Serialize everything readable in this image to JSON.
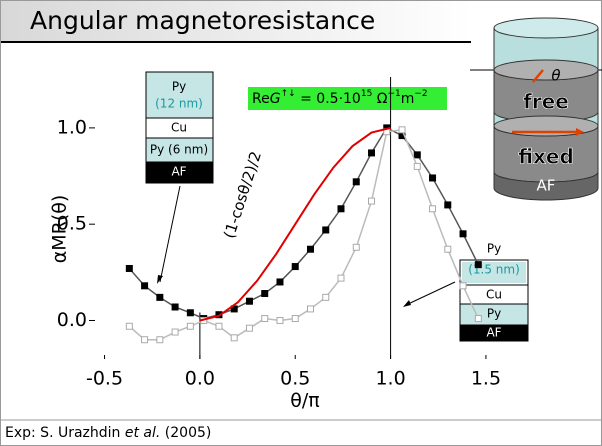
{
  "slide": {
    "title": "Angular magnetoresistance",
    "footer": {
      "prefix": "Exp: S. Urazhdin ",
      "italic": "et al.",
      "suffix": " (2005)"
    },
    "formula": [
      "Re",
      "G",
      "↑↓",
      " = 0.5·10",
      "15",
      " Ω",
      "−1",
      "m",
      "−2"
    ],
    "curve_label": "(1-cosθ/2)/2",
    "left_stack": [
      "Py",
      "(12 nm)",
      "Cu",
      "Py (6 nm)",
      "AF"
    ],
    "right_stack": [
      "Py",
      "(1.5 nm)",
      "Cu",
      "Py",
      "AF"
    ],
    "cylinder": [
      "θ",
      "free",
      "fixed",
      "AF"
    ]
  },
  "chart_data": {
    "type": "scatter",
    "xlabel": "θ/π",
    "ylabel": "αMR(θ)",
    "xlim": [
      -0.55,
      1.6
    ],
    "ylim": [
      -0.2,
      1.15
    ],
    "xticks": [
      {
        "value": -0.5,
        "label": "-0.5"
      },
      {
        "value": 0,
        "label": "0.0"
      },
      {
        "value": 0.5,
        "label": "0.5"
      },
      {
        "value": 1,
        "label": "1.0"
      },
      {
        "value": 1.5,
        "label": "1.5"
      }
    ],
    "yticks": [
      {
        "value": 0,
        "label": "0.0"
      },
      {
        "value": 0.5,
        "label": "0.5"
      },
      {
        "value": 1,
        "label": "1.0"
      }
    ],
    "series": [
      {
        "marker": "filled",
        "color": "#000000",
        "line_color": "#555555",
        "x": [
          -0.37,
          -0.29,
          -0.21,
          -0.13,
          -0.05,
          0.02,
          0.1,
          0.18,
          0.26,
          0.34,
          0.42,
          0.5,
          0.58,
          0.66,
          0.74,
          0.82,
          0.9,
          0.98,
          1.06,
          1.14,
          1.22,
          1.3,
          1.38,
          1.46
        ],
        "values": [
          0.27,
          0.18,
          0.12,
          0.07,
          0.04,
          0.01,
          0.03,
          0.06,
          0.1,
          0.14,
          0.2,
          0.28,
          0.37,
          0.47,
          0.58,
          0.72,
          0.87,
          1.0,
          0.96,
          0.86,
          0.74,
          0.6,
          0.45,
          0.29
        ]
      },
      {
        "marker": "open",
        "color": "#aaaaaa",
        "line_color": "#bbbbbb",
        "x": [
          -0.37,
          -0.29,
          -0.21,
          -0.13,
          -0.05,
          0.02,
          0.1,
          0.18,
          0.26,
          0.34,
          0.42,
          0.5,
          0.58,
          0.66,
          0.74,
          0.82,
          0.9,
          0.98,
          1.06,
          1.14,
          1.22,
          1.3,
          1.38,
          1.46
        ],
        "values": [
          -0.03,
          -0.1,
          -0.1,
          -0.06,
          -0.03,
          0.0,
          -0.03,
          -0.09,
          -0.04,
          0.01,
          0.0,
          0.01,
          0.06,
          0.12,
          0.22,
          0.38,
          0.62,
          0.98,
          0.99,
          0.8,
          0.58,
          0.37,
          0.18,
          0.01
        ]
      },
      {
        "marker": "none",
        "color": "#e00000",
        "line_color": "#e00000",
        "x": [
          0,
          0.1,
          0.2,
          0.3,
          0.4,
          0.5,
          0.6,
          0.7,
          0.8,
          0.9,
          1.0
        ],
        "values": [
          0,
          0.024,
          0.095,
          0.206,
          0.345,
          0.5,
          0.655,
          0.794,
          0.905,
          0.976,
          1.0
        ]
      }
    ]
  }
}
